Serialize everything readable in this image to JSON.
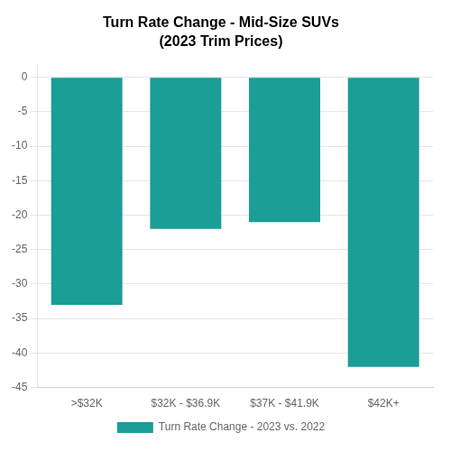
{
  "chart_data": {
    "type": "bar",
    "title": "Turn Rate Change - Mid-Size SUVs",
    "subtitle": "(2023 Trim Prices)",
    "categories": [
      ">$32K",
      "$32K - $36.9K",
      "$37K - $41.9K",
      "$42K+"
    ],
    "series": [
      {
        "name": "Turn Rate Change - 2023 vs. 2022",
        "color": "#1a9e96",
        "values": [
          -33,
          -22,
          -21,
          -42
        ]
      }
    ],
    "ylim": [
      -45,
      2
    ],
    "yticks": [
      0,
      -5,
      -10,
      -15,
      -20,
      -25,
      -30,
      -35,
      -40,
      -45
    ],
    "grid": true,
    "legend": "bottom"
  }
}
